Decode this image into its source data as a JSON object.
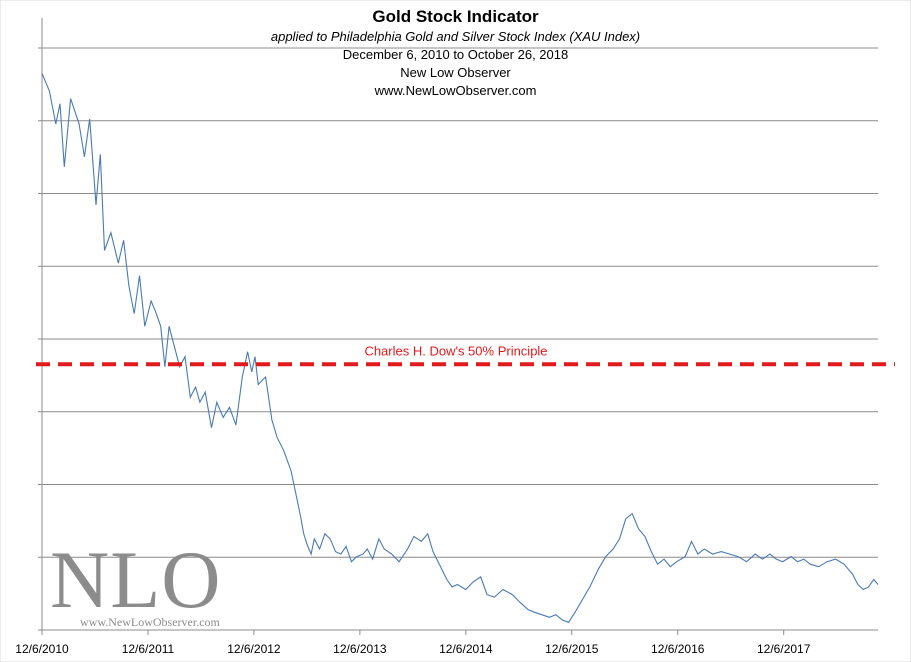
{
  "chart_data": {
    "type": "line",
    "title": "Gold Stock Indicator",
    "subtitle": "applied to Philadelphia Gold and Silver Stock Index (XAU Index)",
    "date_range": "December 6, 2010  to October 26, 2018",
    "author": "New Low Observer",
    "website": "www.NewLowObserver.com",
    "xlabel": "",
    "ylabel": "",
    "x_ticks": [
      "12/6/2010",
      "12/6/2011",
      "12/6/2012",
      "12/6/2013",
      "12/6/2014",
      "12/6/2015",
      "12/6/2016",
      "12/6/2017"
    ],
    "x_range": [
      2010.93,
      2018.82
    ],
    "ylim": [
      0,
      230
    ],
    "gridlines": "horizontal",
    "series": [
      {
        "name": "XAU Index",
        "color": "#4a7ab5",
        "points": [
          [
            2010.93,
            220
          ],
          [
            2011.0,
            213
          ],
          [
            2011.06,
            200
          ],
          [
            2011.1,
            208
          ],
          [
            2011.14,
            183
          ],
          [
            2011.2,
            210
          ],
          [
            2011.28,
            200
          ],
          [
            2011.33,
            187
          ],
          [
            2011.38,
            202
          ],
          [
            2011.44,
            168
          ],
          [
            2011.48,
            188
          ],
          [
            2011.52,
            150
          ],
          [
            2011.58,
            157
          ],
          [
            2011.65,
            145
          ],
          [
            2011.7,
            154
          ],
          [
            2011.75,
            136
          ],
          [
            2011.8,
            125
          ],
          [
            2011.85,
            140
          ],
          [
            2011.9,
            120
          ],
          [
            2011.96,
            130
          ],
          [
            2012.0,
            126
          ],
          [
            2012.05,
            120
          ],
          [
            2012.09,
            104
          ],
          [
            2012.13,
            120
          ],
          [
            2012.18,
            112
          ],
          [
            2012.23,
            104
          ],
          [
            2012.28,
            108
          ],
          [
            2012.33,
            92
          ],
          [
            2012.38,
            96
          ],
          [
            2012.42,
            90
          ],
          [
            2012.47,
            94
          ],
          [
            2012.53,
            80
          ],
          [
            2012.58,
            90
          ],
          [
            2012.64,
            84
          ],
          [
            2012.7,
            88
          ],
          [
            2012.76,
            81
          ],
          [
            2012.82,
            100
          ],
          [
            2012.87,
            110
          ],
          [
            2012.91,
            102
          ],
          [
            2012.94,
            108
          ],
          [
            2012.97,
            97
          ],
          [
            2013.04,
            100
          ],
          [
            2013.1,
            83
          ],
          [
            2013.15,
            76
          ],
          [
            2013.21,
            71
          ],
          [
            2013.28,
            63
          ],
          [
            2013.33,
            53
          ],
          [
            2013.37,
            45
          ],
          [
            2013.4,
            38
          ],
          [
            2013.43,
            34
          ],
          [
            2013.47,
            30
          ],
          [
            2013.5,
            36
          ],
          [
            2013.55,
            32
          ],
          [
            2013.6,
            38
          ],
          [
            2013.65,
            36
          ],
          [
            2013.7,
            31
          ],
          [
            2013.75,
            30
          ],
          [
            2013.8,
            33
          ],
          [
            2013.85,
            27
          ],
          [
            2013.9,
            29
          ],
          [
            2013.96,
            30
          ],
          [
            2014.0,
            32
          ],
          [
            2014.05,
            28
          ],
          [
            2014.11,
            36
          ],
          [
            2014.16,
            32
          ],
          [
            2014.23,
            30
          ],
          [
            2014.3,
            27
          ],
          [
            2014.38,
            32
          ],
          [
            2014.44,
            37
          ],
          [
            2014.51,
            35
          ],
          [
            2014.57,
            38
          ],
          [
            2014.62,
            31
          ],
          [
            2014.68,
            26
          ],
          [
            2014.75,
            20
          ],
          [
            2014.8,
            17
          ],
          [
            2014.85,
            18
          ],
          [
            2014.93,
            16
          ],
          [
            2015.0,
            19
          ],
          [
            2015.07,
            21
          ],
          [
            2015.13,
            14
          ],
          [
            2015.2,
            13
          ],
          [
            2015.28,
            16
          ],
          [
            2015.37,
            14
          ],
          [
            2015.44,
            11
          ],
          [
            2015.52,
            8
          ],
          [
            2015.58,
            7
          ],
          [
            2015.65,
            6
          ],
          [
            2015.72,
            5
          ],
          [
            2015.78,
            6
          ],
          [
            2015.84,
            4
          ],
          [
            2015.9,
            3
          ],
          [
            2015.96,
            7
          ],
          [
            2016.03,
            12
          ],
          [
            2016.1,
            17
          ],
          [
            2016.18,
            24
          ],
          [
            2016.25,
            29
          ],
          [
            2016.32,
            32
          ],
          [
            2016.38,
            36
          ],
          [
            2016.44,
            44
          ],
          [
            2016.5,
            46
          ],
          [
            2016.56,
            40
          ],
          [
            2016.62,
            37
          ],
          [
            2016.68,
            31
          ],
          [
            2016.74,
            26
          ],
          [
            2016.8,
            28
          ],
          [
            2016.86,
            25
          ],
          [
            2016.92,
            27
          ],
          [
            2017.0,
            29
          ],
          [
            2017.06,
            35
          ],
          [
            2017.12,
            30
          ],
          [
            2017.18,
            32
          ],
          [
            2017.26,
            30
          ],
          [
            2017.34,
            31
          ],
          [
            2017.42,
            30
          ],
          [
            2017.5,
            29
          ],
          [
            2017.58,
            27
          ],
          [
            2017.66,
            30
          ],
          [
            2017.73,
            28
          ],
          [
            2017.8,
            30
          ],
          [
            2017.86,
            28
          ],
          [
            2017.92,
            27
          ],
          [
            2018.0,
            29
          ],
          [
            2018.06,
            27
          ],
          [
            2018.12,
            28
          ],
          [
            2018.18,
            26
          ],
          [
            2018.26,
            25
          ],
          [
            2018.34,
            27
          ],
          [
            2018.42,
            28
          ],
          [
            2018.5,
            26
          ],
          [
            2018.58,
            22
          ],
          [
            2018.63,
            18
          ],
          [
            2018.68,
            16
          ],
          [
            2018.73,
            17
          ],
          [
            2018.78,
            20
          ],
          [
            2018.82,
            18
          ]
        ]
      }
    ],
    "reference_line": {
      "label": "Charles H. Dow's 50% Principle",
      "value": 105,
      "color": "#e31a1c"
    }
  },
  "logo": {
    "text": "NLO",
    "url_text": "www.NewLowObserver.com"
  }
}
